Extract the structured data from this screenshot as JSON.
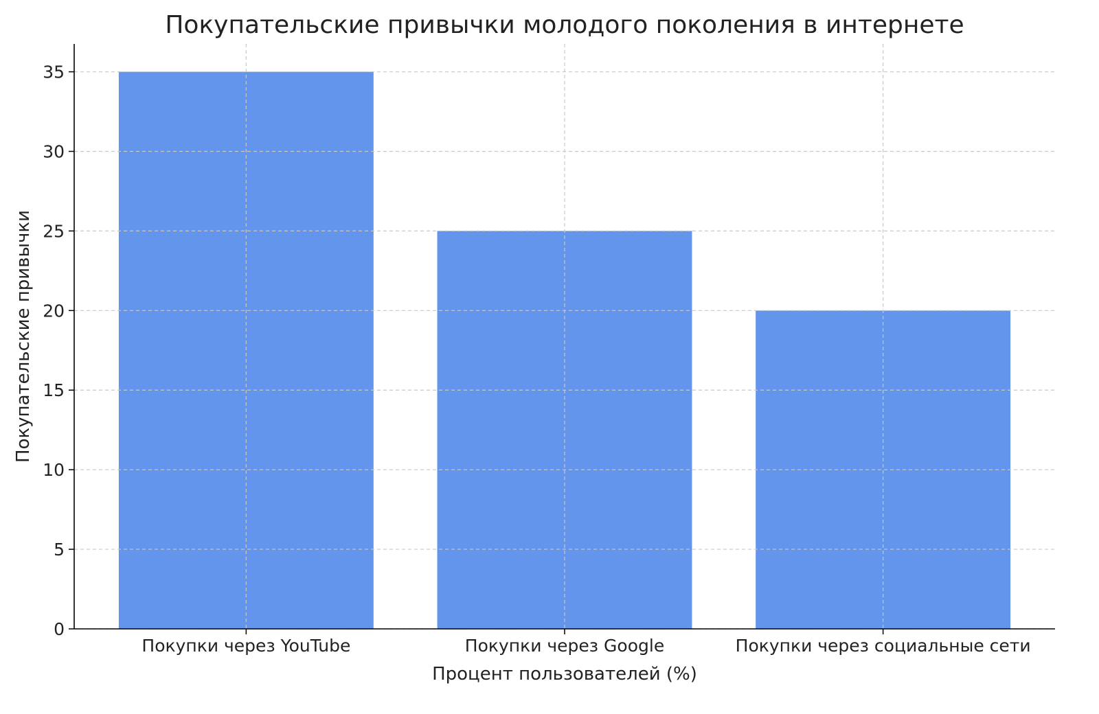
{
  "chart_data": {
    "type": "bar",
    "title": "Покупательские привычки молодого поколения в интернете",
    "xlabel": "Процент пользователей (%)",
    "ylabel": "Покупательские привычки",
    "categories": [
      "Покупки через YouTube",
      "Покупки через Google",
      "Покупки через социальные сети"
    ],
    "values": [
      35,
      25,
      20
    ],
    "ylim": [
      0,
      36.75
    ],
    "yticks": [
      0,
      5,
      10,
      15,
      20,
      25,
      30,
      35
    ],
    "grid": true,
    "bar_color": "#6495ED",
    "legend": "none"
  }
}
